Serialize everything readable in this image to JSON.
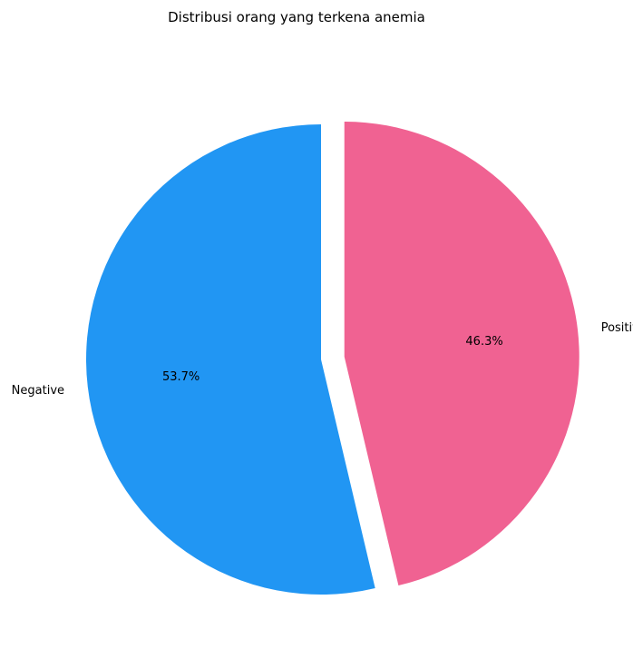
{
  "chart_data": {
    "type": "pie",
    "title": "Distribusi orang yang terkena anemia",
    "slices": [
      {
        "label": "Negative",
        "value": 53.7,
        "percent_label": "53.7%",
        "color": "#2196F3"
      },
      {
        "label": "Positive",
        "value": 46.3,
        "percent_label": "46.3%",
        "color": "#F06292"
      }
    ],
    "start_angle_deg": 90,
    "direction": "counterclockwise",
    "explode": [
      0,
      0.1
    ],
    "legend": "none"
  }
}
